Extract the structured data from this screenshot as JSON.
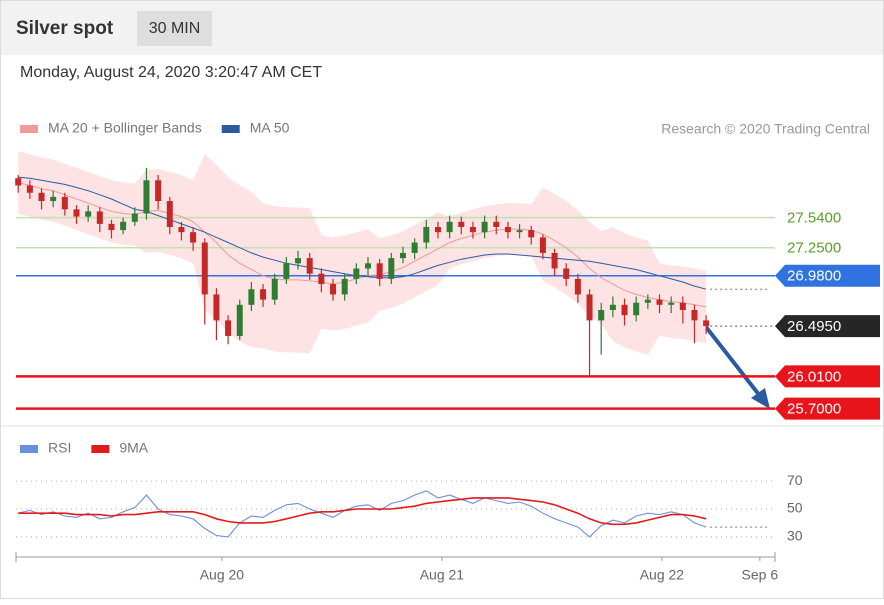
{
  "header": {
    "title": "Silver spot",
    "interval": "30 MIN",
    "datetime": "Monday, August 24, 2020 3:20:47 AM CET"
  },
  "chart_data": [
    {
      "type": "candlestick",
      "annotation": "Research © 2020 Trading Central",
      "xlim": [
        0.064,
        3.514
      ],
      "ylim": [
        25.59,
        28.24
      ],
      "x": [
        0.074,
        0.127,
        0.18,
        0.233,
        0.286,
        0.339,
        0.392,
        0.445,
        0.498,
        0.551,
        0.604,
        0.657,
        0.71,
        0.763,
        0.816,
        0.869,
        0.922,
        0.975,
        1.028,
        1.081,
        1.134,
        1.187,
        1.24,
        1.293,
        1.346,
        1.399,
        1.452,
        1.505,
        1.558,
        1.611,
        1.664,
        1.717,
        1.77,
        1.823,
        1.876,
        1.929,
        1.982,
        2.035,
        2.088,
        2.141,
        2.194,
        2.247,
        2.3,
        2.353,
        2.406,
        2.459,
        2.512,
        2.565,
        2.618,
        2.671,
        2.724,
        2.777,
        2.83,
        2.883,
        2.936,
        2.989,
        3.042,
        3.095,
        3.148,
        3.201
      ],
      "open": [
        27.92,
        27.85,
        27.78,
        27.7,
        27.74,
        27.62,
        27.55,
        27.6,
        27.48,
        27.42,
        27.5,
        27.58,
        27.9,
        27.7,
        27.45,
        27.4,
        27.3,
        26.8,
        26.55,
        26.4,
        26.7,
        26.85,
        26.75,
        26.95,
        27.1,
        27.15,
        27.0,
        26.9,
        26.8,
        26.95,
        27.05,
        27.1,
        26.95,
        27.15,
        27.2,
        27.3,
        27.45,
        27.4,
        27.5,
        27.45,
        27.4,
        27.5,
        27.45,
        27.4,
        27.42,
        27.35,
        27.2,
        27.05,
        26.95,
        26.8,
        26.55,
        26.65,
        26.7,
        26.6,
        26.72,
        26.75,
        26.7,
        26.72,
        26.65,
        26.55
      ],
      "high": [
        27.95,
        27.9,
        27.82,
        27.8,
        27.78,
        27.66,
        27.66,
        27.64,
        27.52,
        27.54,
        27.64,
        28.02,
        27.95,
        27.74,
        27.5,
        27.45,
        27.34,
        26.86,
        26.6,
        26.75,
        26.92,
        26.9,
        27.0,
        27.16,
        27.22,
        27.2,
        27.05,
        26.95,
        27.0,
        27.1,
        27.16,
        27.14,
        27.2,
        27.26,
        27.34,
        27.52,
        27.5,
        27.56,
        27.55,
        27.5,
        27.56,
        27.56,
        27.5,
        27.48,
        27.46,
        27.38,
        27.24,
        27.1,
        27.0,
        26.85,
        26.72,
        26.78,
        26.76,
        26.78,
        26.8,
        26.8,
        26.78,
        26.78,
        26.7,
        26.6
      ],
      "low": [
        27.78,
        27.72,
        27.62,
        27.64,
        27.56,
        27.48,
        27.5,
        27.4,
        27.34,
        27.38,
        27.46,
        27.52,
        27.62,
        27.38,
        27.32,
        27.22,
        26.51,
        26.36,
        26.32,
        26.36,
        26.64,
        26.68,
        26.7,
        26.9,
        27.04,
        26.94,
        26.82,
        26.74,
        26.74,
        26.9,
        26.98,
        26.88,
        26.9,
        27.1,
        27.14,
        27.24,
        27.34,
        27.34,
        27.38,
        27.34,
        27.34,
        27.38,
        27.34,
        27.34,
        27.28,
        27.14,
        26.98,
        26.88,
        26.72,
        26.01,
        26.22,
        26.58,
        26.5,
        26.54,
        26.66,
        26.62,
        26.62,
        26.52,
        26.33,
        26.42
      ],
      "close": [
        27.85,
        27.78,
        27.7,
        27.74,
        27.62,
        27.55,
        27.6,
        27.48,
        27.42,
        27.5,
        27.58,
        27.9,
        27.7,
        27.45,
        27.4,
        27.3,
        26.8,
        26.55,
        26.4,
        26.7,
        26.85,
        26.75,
        26.95,
        27.1,
        27.15,
        27.0,
        26.9,
        26.8,
        26.95,
        27.05,
        27.1,
        26.95,
        27.15,
        27.2,
        27.3,
        27.45,
        27.4,
        27.5,
        27.45,
        27.4,
        27.5,
        27.45,
        27.4,
        27.42,
        27.35,
        27.2,
        27.05,
        26.95,
        26.8,
        26.55,
        26.65,
        26.7,
        26.6,
        26.72,
        26.75,
        26.7,
        26.72,
        26.65,
        26.55,
        26.495
      ],
      "up_color": "#2e7d32",
      "down_color": "#c62828",
      "series": [
        {
          "name": "MA 20 + Bollinger Bands",
          "color": "#f19a9a",
          "band_color": "#fde3e3",
          "values": [
            27.88,
            27.85,
            27.82,
            27.8,
            27.76,
            27.72,
            27.68,
            27.64,
            27.6,
            27.58,
            27.57,
            27.6,
            27.61,
            27.58,
            27.55,
            27.5,
            27.4,
            27.3,
            27.18,
            27.1,
            27.04,
            26.98,
            26.95,
            26.94,
            26.94,
            26.93,
            26.92,
            26.9,
            26.92,
            26.95,
            26.98,
            26.99,
            27.02,
            27.06,
            27.12,
            27.18,
            27.24,
            27.3,
            27.34,
            27.37,
            27.4,
            27.42,
            27.43,
            27.43,
            27.42,
            27.38,
            27.32,
            27.25,
            27.16,
            27.05,
            26.96,
            26.9,
            26.84,
            26.8,
            26.77,
            26.75,
            26.73,
            26.72,
            26.7,
            26.68
          ],
          "upper": [
            28.18,
            28.15,
            28.12,
            28.1,
            28.06,
            28.02,
            27.98,
            27.94,
            27.9,
            27.88,
            27.87,
            28.0,
            28.01,
            27.98,
            27.95,
            27.9,
            28.15,
            28.05,
            27.93,
            27.85,
            27.79,
            27.68,
            27.65,
            27.64,
            27.64,
            27.63,
            27.37,
            27.35,
            27.37,
            27.4,
            27.43,
            27.34,
            27.37,
            27.41,
            27.47,
            27.53,
            27.59,
            27.55,
            27.59,
            27.62,
            27.65,
            27.67,
            27.68,
            27.68,
            27.67,
            27.83,
            27.77,
            27.7,
            27.61,
            27.5,
            27.41,
            27.45,
            27.39,
            27.35,
            27.32,
            27.1,
            27.08,
            27.07,
            27.05,
            27.03
          ],
          "lower": [
            27.58,
            27.55,
            27.52,
            27.5,
            27.46,
            27.42,
            27.38,
            27.34,
            27.3,
            27.28,
            27.27,
            27.2,
            27.21,
            27.18,
            27.15,
            27.1,
            26.65,
            26.55,
            26.43,
            26.35,
            26.29,
            26.28,
            26.25,
            26.24,
            26.24,
            26.23,
            26.47,
            26.45,
            26.47,
            26.5,
            26.53,
            26.64,
            26.67,
            26.71,
            26.77,
            26.83,
            26.89,
            27.05,
            27.09,
            27.12,
            27.15,
            27.17,
            27.18,
            27.18,
            27.17,
            26.93,
            26.87,
            26.8,
            26.71,
            26.6,
            26.51,
            26.35,
            26.29,
            26.25,
            26.22,
            26.4,
            26.38,
            26.37,
            26.35,
            26.33
          ]
        },
        {
          "name": "MA 50",
          "color": "#2c5aa0",
          "values": [
            27.93,
            27.92,
            27.9,
            27.88,
            27.86,
            27.83,
            27.8,
            27.76,
            27.72,
            27.67,
            27.62,
            27.6,
            27.56,
            27.52,
            27.48,
            27.44,
            27.4,
            27.35,
            27.3,
            27.25,
            27.2,
            27.16,
            27.13,
            27.1,
            27.08,
            27.06,
            27.04,
            27.02,
            27.0,
            26.98,
            26.97,
            26.96,
            26.96,
            26.97,
            27.0,
            27.04,
            27.08,
            27.11,
            27.14,
            27.16,
            27.18,
            27.19,
            27.19,
            27.18,
            27.17,
            27.16,
            27.15,
            27.14,
            27.13,
            27.12,
            27.1,
            27.08,
            27.06,
            27.04,
            27.01,
            26.98,
            26.95,
            26.92,
            26.88,
            26.85
          ]
        }
      ],
      "levels": [
        {
          "value": 27.54,
          "label": "27.5400",
          "color": "#c5e0b0",
          "text_color": "#5aa02c",
          "style": "line"
        },
        {
          "value": 27.25,
          "label": "27.2500",
          "color": "#c5e0b0",
          "text_color": "#5aa02c",
          "style": "line"
        },
        {
          "value": 26.98,
          "label": "26.9800",
          "color": "#2f73e0",
          "text_color": "#ffffff",
          "style": "box"
        },
        {
          "value": 26.495,
          "label": "26.4950",
          "color": "#262626",
          "text_color": "#ffffff",
          "style": "dotted-box"
        },
        {
          "value": 26.01,
          "label": "26.0100",
          "color": "#e8141c",
          "text_color": "#ffffff",
          "style": "box"
        },
        {
          "value": 25.7,
          "label": "25.7000",
          "color": "#e8141c",
          "text_color": "#ffffff",
          "style": "box"
        }
      ]
    },
    {
      "type": "line",
      "xlim": [
        0.064,
        3.514
      ],
      "ylim": [
        22,
        78
      ],
      "yticks": [
        30,
        50,
        70
      ],
      "grid": "dotted",
      "xticks": [
        {
          "value": 1,
          "label": "Aug 20"
        },
        {
          "value": 2,
          "label": "Aug 21"
        },
        {
          "value": 3,
          "label": "Aug 22"
        },
        {
          "value": 3.445,
          "label": "Sep 6"
        }
      ],
      "x": [
        0.074,
        0.127,
        0.18,
        0.233,
        0.286,
        0.339,
        0.392,
        0.445,
        0.498,
        0.551,
        0.604,
        0.657,
        0.71,
        0.763,
        0.816,
        0.869,
        0.922,
        0.975,
        1.028,
        1.081,
        1.134,
        1.187,
        1.24,
        1.293,
        1.346,
        1.399,
        1.452,
        1.505,
        1.558,
        1.611,
        1.664,
        1.717,
        1.77,
        1.823,
        1.876,
        1.929,
        1.982,
        2.035,
        2.088,
        2.141,
        2.194,
        2.247,
        2.3,
        2.353,
        2.406,
        2.459,
        2.512,
        2.565,
        2.618,
        2.671,
        2.724,
        2.777,
        2.83,
        2.883,
        2.936,
        2.989,
        3.042,
        3.095,
        3.148,
        3.201
      ],
      "series": [
        {
          "name": "RSI",
          "color": "#6a8fdc",
          "values": [
            47,
            49,
            46,
            48,
            45,
            44,
            47,
            43,
            44,
            48,
            51,
            60,
            50,
            46,
            45,
            43,
            36,
            31,
            30,
            40,
            45,
            44,
            49,
            53,
            54,
            50,
            47,
            44,
            49,
            52,
            53,
            49,
            54,
            56,
            60,
            63,
            58,
            60,
            57,
            54,
            58,
            56,
            54,
            55,
            52,
            47,
            43,
            40,
            37,
            30,
            38,
            42,
            40,
            45,
            47,
            46,
            48,
            46,
            40,
            37
          ]
        },
        {
          "name": "9MA",
          "color": "#e31a1c",
          "values": [
            47,
            47,
            47,
            47,
            47,
            46,
            46,
            46,
            45,
            46,
            46,
            47,
            48,
            48,
            48,
            48,
            46,
            43,
            41,
            40,
            40,
            40,
            41,
            43,
            45,
            47,
            48,
            48,
            49,
            50,
            50,
            50,
            50,
            51,
            52,
            54,
            55,
            56,
            57,
            58,
            58,
            58,
            58,
            57,
            56,
            55,
            53,
            50,
            47,
            43,
            40,
            39,
            39,
            40,
            42,
            44,
            46,
            46,
            45,
            43
          ]
        }
      ]
    }
  ]
}
